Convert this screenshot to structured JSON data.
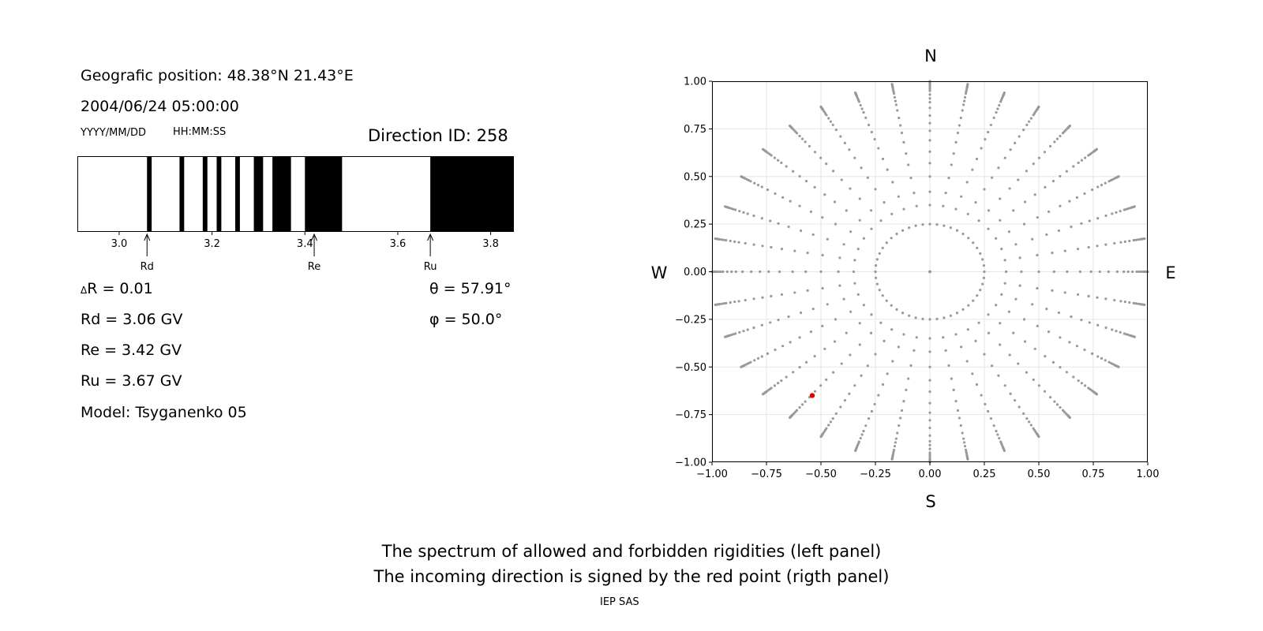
{
  "header": {
    "position": "Geografic position: 48.38°N 21.43°E",
    "datetime": "2004/06/24 05:00:00",
    "date_format": "YYYY/MM/DD",
    "time_format": "HH:MM:SS",
    "direction_id": "Direction ID: 258"
  },
  "params": {
    "delta_r": "R = 0.01",
    "delta_symbol": "Δ",
    "rd": "Rd = 3.06 GV",
    "re": "Re = 3.42 GV",
    "ru": "Ru = 3.67 GV",
    "model": "Model: Tsyganenko 05",
    "theta": "θ = 57.91°",
    "phi": "φ = 50.0°"
  },
  "captions": {
    "line1": "The spectrum of allowed and forbidden rigidities (left panel)",
    "line2": "The incoming direction is signed by the red point (rigth panel)",
    "credit": "IEP SAS"
  },
  "chart_data": [
    {
      "type": "bar",
      "description_role": "rigidity spectrum (black = forbidden, white = allowed)",
      "xlim": [
        2.91,
        3.85
      ],
      "ticks": [
        3.0,
        3.2,
        3.4,
        3.6,
        3.8
      ],
      "tick_labels": [
        "3.0",
        "3.2",
        "3.4",
        "3.6",
        "3.8"
      ],
      "forbidden_bands": [
        [
          3.06,
          3.07
        ],
        [
          3.13,
          3.14
        ],
        [
          3.18,
          3.19
        ],
        [
          3.21,
          3.22
        ],
        [
          3.25,
          3.26
        ],
        [
          3.29,
          3.31
        ],
        [
          3.33,
          3.37
        ],
        [
          3.4,
          3.48
        ],
        [
          3.67,
          3.85
        ]
      ],
      "markers": [
        {
          "label": "Rd",
          "value": 3.06
        },
        {
          "label": "Re",
          "value": 3.42
        },
        {
          "label": "Ru",
          "value": 3.67
        }
      ],
      "colors": {
        "forbidden": "#000000",
        "allowed": "#ffffff"
      }
    },
    {
      "type": "scatter",
      "description_role": "sky map of incoming directions",
      "xlim": [
        -1.0,
        1.0
      ],
      "ylim": [
        -1.0,
        1.0
      ],
      "xticks": [
        -1.0,
        -0.75,
        -0.5,
        -0.25,
        0.0,
        0.25,
        0.5,
        0.75,
        1.0
      ],
      "yticks": [
        -1.0,
        -0.75,
        -0.5,
        -0.25,
        0.0,
        0.25,
        0.5,
        0.75,
        1.0
      ],
      "xtick_labels": [
        "−1.00",
        "−0.75",
        "−0.50",
        "−0.25",
        "0.00",
        "0.25",
        "0.50",
        "0.75",
        "1.00"
      ],
      "ytick_labels": [
        "−1.00",
        "−0.75",
        "−0.50",
        "−0.25",
        "0.00",
        "0.25",
        "0.50",
        "0.75",
        "1.00"
      ],
      "grid": true,
      "compass": {
        "north": "N",
        "south": "S",
        "west": "W",
        "east": "E"
      },
      "grid_directions": {
        "inner_ring_radius": 0.25,
        "inner_ring_points": 48,
        "azimuth_step_deg": 10,
        "radii": [
          0.0,
          0.35,
          0.42,
          0.5,
          0.57,
          0.63,
          0.69,
          0.74,
          0.78,
          0.82,
          0.86,
          0.89,
          0.91,
          0.93,
          0.95,
          0.96,
          0.97,
          0.98,
          0.985,
          0.99,
          0.995,
          1.0
        ]
      },
      "highlight_point": {
        "x": -0.54,
        "y": -0.65
      },
      "colors": {
        "points": "#999999",
        "highlight": "#e00000"
      }
    }
  ]
}
